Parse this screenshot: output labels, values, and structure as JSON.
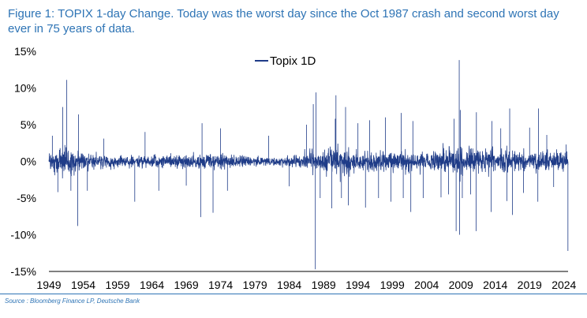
{
  "chart_data": {
    "type": "line",
    "title": "Figure 1: TOPIX 1-day Change. Today was the worst day since the Oct 1987 crash and second worst day ever in 75 years of data.",
    "xlabel": "",
    "ylabel": "",
    "xlim": [
      1949,
      2024.6
    ],
    "ylim": [
      -15,
      15
    ],
    "x_ticks": [
      1949,
      1954,
      1959,
      1964,
      1969,
      1974,
      1979,
      1984,
      1989,
      1994,
      1999,
      2004,
      2009,
      2014,
      2019,
      2024
    ],
    "y_ticks": [
      15,
      10,
      5,
      0,
      -5,
      -10,
      -15
    ],
    "y_tick_labels": [
      "15%",
      "10%",
      "5%",
      "0%",
      "-5%",
      "-10%",
      "-15%"
    ],
    "legend": {
      "position": "top-center",
      "entries": [
        "Topix 1D"
      ]
    },
    "color": "#1f3c88",
    "volatility_envelope": [
      {
        "year": 1949,
        "amp": 2.6
      },
      {
        "year": 1951,
        "amp": 3.2
      },
      {
        "year": 1953,
        "amp": 2.4
      },
      {
        "year": 1955,
        "amp": 1.5
      },
      {
        "year": 1960,
        "amp": 1.2
      },
      {
        "year": 1965,
        "amp": 1.3
      },
      {
        "year": 1970,
        "amp": 1.6
      },
      {
        "year": 1974,
        "amp": 1.7
      },
      {
        "year": 1978,
        "amp": 1.0
      },
      {
        "year": 1983,
        "amp": 1.1
      },
      {
        "year": 1986,
        "amp": 1.6
      },
      {
        "year": 1988,
        "amp": 2.2
      },
      {
        "year": 1990,
        "amp": 3.0
      },
      {
        "year": 1995,
        "amp": 2.3
      },
      {
        "year": 2000,
        "amp": 2.3
      },
      {
        "year": 2005,
        "amp": 2.0
      },
      {
        "year": 2008,
        "amp": 3.4
      },
      {
        "year": 2010,
        "amp": 2.5
      },
      {
        "year": 2013,
        "amp": 2.8
      },
      {
        "year": 2016,
        "amp": 2.4
      },
      {
        "year": 2019,
        "amp": 1.8
      },
      {
        "year": 2020,
        "amp": 2.6
      },
      {
        "year": 2022,
        "amp": 2.1
      },
      {
        "year": 2024.6,
        "amp": 2.2
      }
    ],
    "spikes": [
      {
        "year": 1949.5,
        "value": 3.5
      },
      {
        "year": 1950.3,
        "value": -4.2
      },
      {
        "year": 1951.0,
        "value": 7.4
      },
      {
        "year": 1951.6,
        "value": 11.1
      },
      {
        "year": 1952.2,
        "value": -4.0
      },
      {
        "year": 1953.2,
        "value": -8.8
      },
      {
        "year": 1953.3,
        "value": 6.4
      },
      {
        "year": 1954.6,
        "value": -4.0
      },
      {
        "year": 1957.0,
        "value": 3.1
      },
      {
        "year": 1961.5,
        "value": -5.5
      },
      {
        "year": 1963.0,
        "value": 4.0
      },
      {
        "year": 1965.0,
        "value": -4.0
      },
      {
        "year": 1969.0,
        "value": -3.3
      },
      {
        "year": 1971.1,
        "value": -7.6
      },
      {
        "year": 1971.3,
        "value": 5.2
      },
      {
        "year": 1972.9,
        "value": -7.0
      },
      {
        "year": 1974.0,
        "value": 4.5
      },
      {
        "year": 1975.0,
        "value": -4.0
      },
      {
        "year": 1981.0,
        "value": 3.5
      },
      {
        "year": 1984.0,
        "value": -3.4
      },
      {
        "year": 1986.5,
        "value": 5.0
      },
      {
        "year": 1987.5,
        "value": 7.8
      },
      {
        "year": 1987.8,
        "value": -14.7
      },
      {
        "year": 1987.9,
        "value": 9.4
      },
      {
        "year": 1988.5,
        "value": -5.0
      },
      {
        "year": 1990.2,
        "value": -6.4
      },
      {
        "year": 1990.7,
        "value": 5.8
      },
      {
        "year": 1990.8,
        "value": 9.0
      },
      {
        "year": 1991.6,
        "value": -5.0
      },
      {
        "year": 1992.2,
        "value": 7.4
      },
      {
        "year": 1992.6,
        "value": -6.0
      },
      {
        "year": 1994.0,
        "value": 5.2
      },
      {
        "year": 1995.1,
        "value": -6.3
      },
      {
        "year": 1995.7,
        "value": 5.6
      },
      {
        "year": 1997.0,
        "value": -5.0
      },
      {
        "year": 1998.0,
        "value": 6.0
      },
      {
        "year": 1998.8,
        "value": -5.5
      },
      {
        "year": 2000.3,
        "value": 6.6
      },
      {
        "year": 2000.6,
        "value": -5.0
      },
      {
        "year": 2001.7,
        "value": -6.9
      },
      {
        "year": 2002.0,
        "value": 5.5
      },
      {
        "year": 2003.5,
        "value": -5.0
      },
      {
        "year": 2006.1,
        "value": -4.9
      },
      {
        "year": 2007.2,
        "value": -4.5
      },
      {
        "year": 2008.0,
        "value": 5.8
      },
      {
        "year": 2008.3,
        "value": -9.5
      },
      {
        "year": 2008.75,
        "value": 13.8
      },
      {
        "year": 2008.8,
        "value": -10.0
      },
      {
        "year": 2008.9,
        "value": 7.0
      },
      {
        "year": 2009.2,
        "value": -5.0
      },
      {
        "year": 2010.4,
        "value": -4.5
      },
      {
        "year": 2011.2,
        "value": -9.5
      },
      {
        "year": 2011.25,
        "value": 6.7
      },
      {
        "year": 2013.4,
        "value": -6.9
      },
      {
        "year": 2013.5,
        "value": 5.5
      },
      {
        "year": 2014.8,
        "value": 4.5
      },
      {
        "year": 2015.7,
        "value": -5.4
      },
      {
        "year": 2016.1,
        "value": 7.2
      },
      {
        "year": 2016.5,
        "value": -7.3
      },
      {
        "year": 2018.1,
        "value": -4.3
      },
      {
        "year": 2019.0,
        "value": 4.6
      },
      {
        "year": 2020.2,
        "value": -5.5
      },
      {
        "year": 2020.3,
        "value": 7.2
      },
      {
        "year": 2021.5,
        "value": 3.6
      },
      {
        "year": 2022.5,
        "value": -3.5
      },
      {
        "year": 2024.3,
        "value": 2.3
      },
      {
        "year": 2024.58,
        "value": -12.2
      }
    ]
  },
  "source": "Source : Bloomberg Finance LP, Deutsche Bank"
}
